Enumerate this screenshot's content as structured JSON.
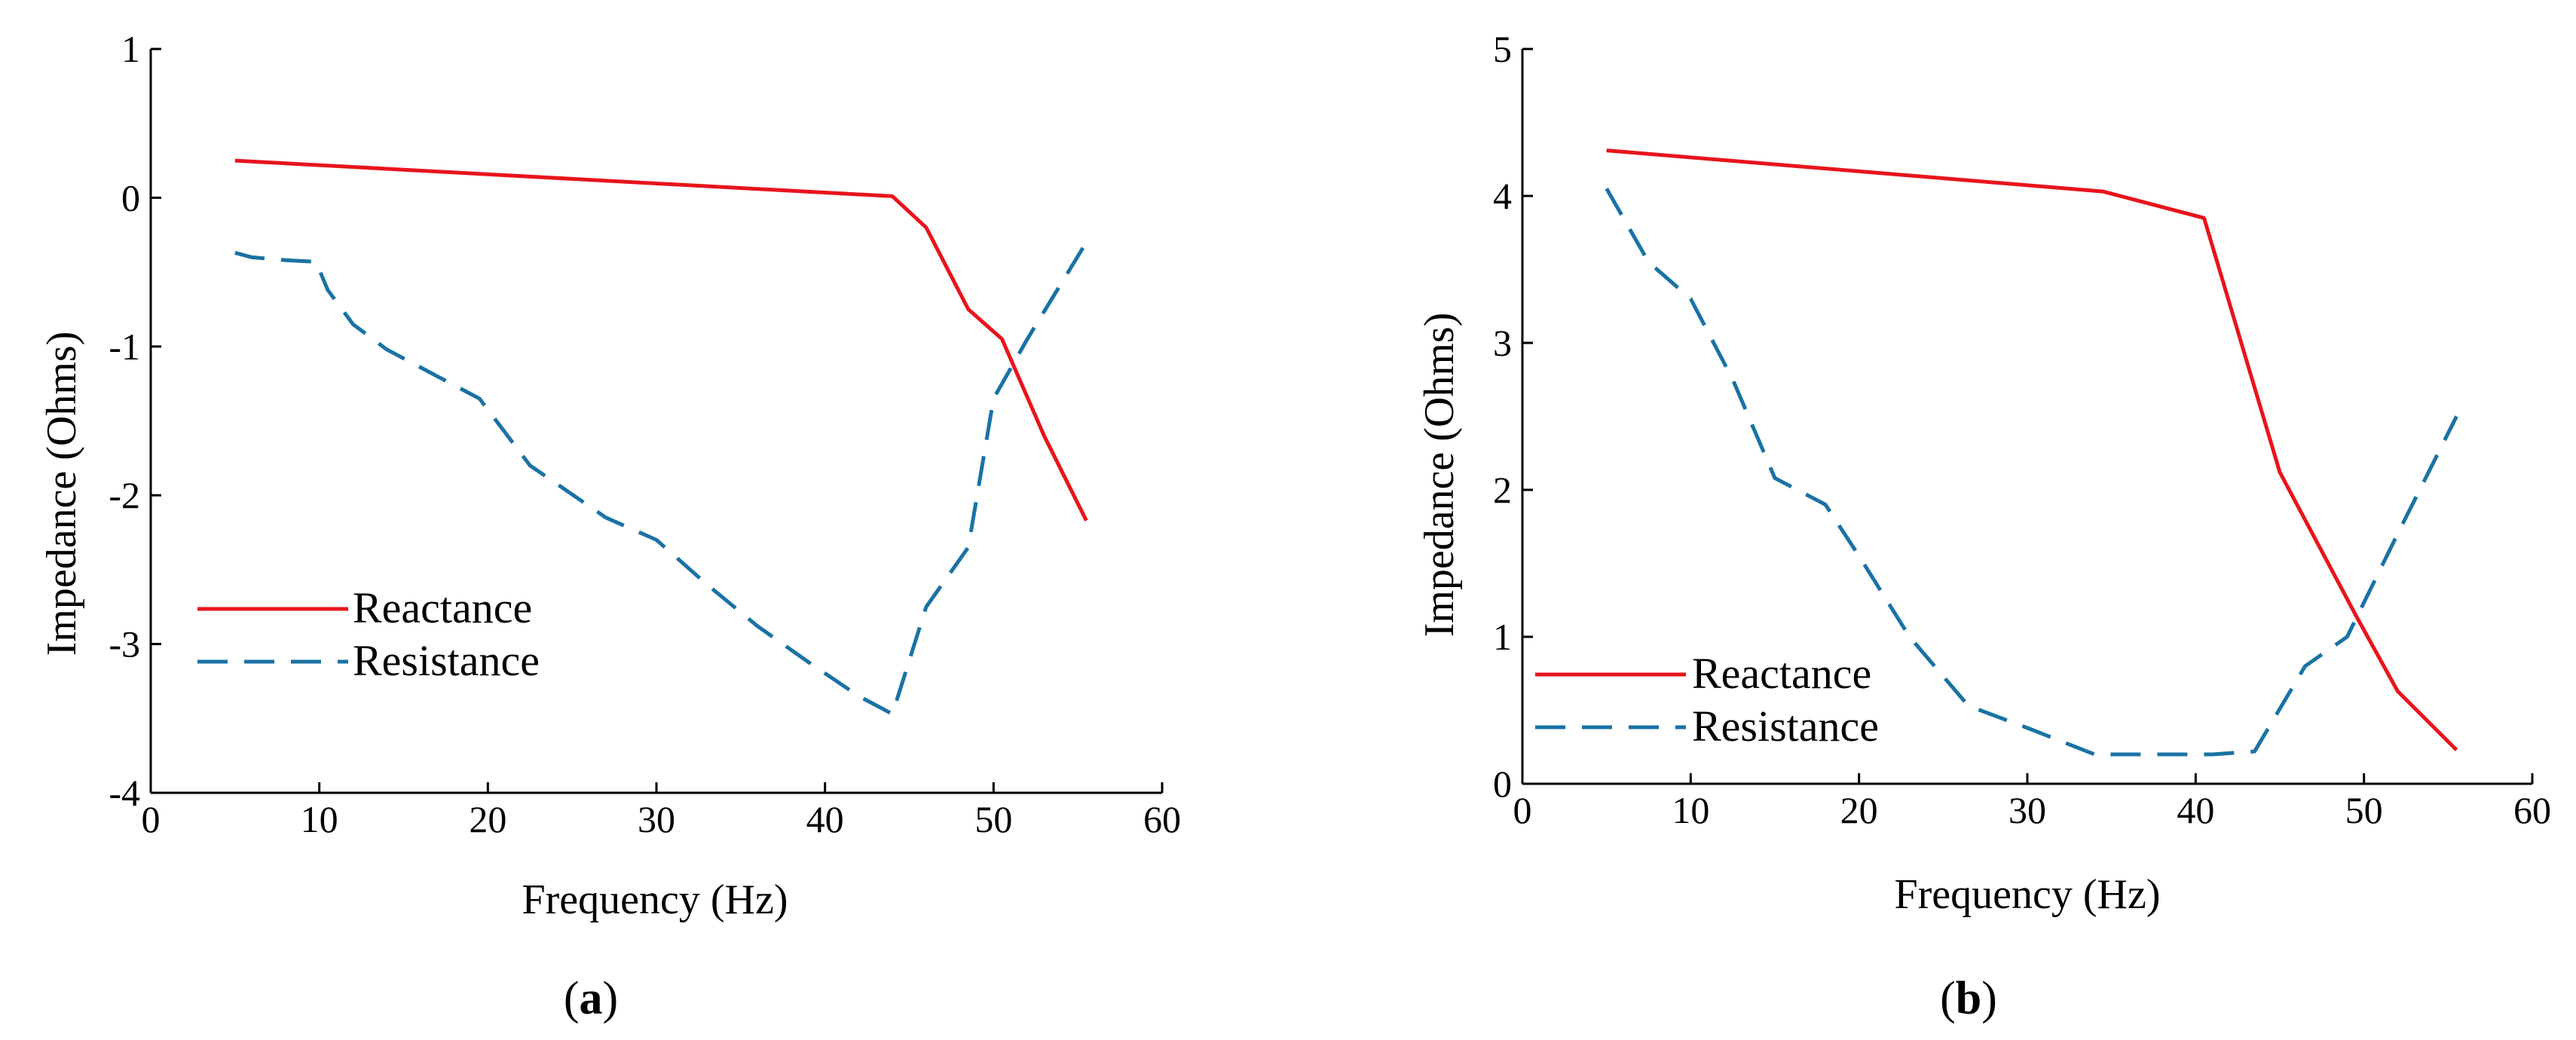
{
  "chart_data": [
    {
      "type": "line",
      "panel_label": {
        "open": "(",
        "letter": "a",
        "close": ")"
      },
      "xlabel": "Frequency (Hz)",
      "ylabel": "Impedance (Ohms)",
      "xlim": [
        0,
        60
      ],
      "ylim": [
        -4,
        1
      ],
      "xticks": [
        0,
        10,
        20,
        30,
        40,
        50,
        60
      ],
      "yticks": [
        -4,
        -3,
        -2,
        -1,
        0,
        1
      ],
      "xtick_labels": [
        "0",
        "10",
        "20",
        "30",
        "40",
        "50",
        "60"
      ],
      "ytick_labels": [
        "-4",
        "-3",
        "-2",
        "-1",
        "0",
        "1"
      ],
      "grid": false,
      "legend_position": "lower-left",
      "series": [
        {
          "name": "Reactance",
          "color": "#e8141c",
          "style": "solid",
          "x": [
            5,
            44,
            46,
            48.5,
            50.5,
            53,
            55.5
          ],
          "y": [
            0.25,
            0.01,
            -0.2,
            -0.75,
            -0.95,
            -1.6,
            -2.17
          ]
        },
        {
          "name": "Resistance",
          "color": "#1a72a4",
          "style": "dashed",
          "x": [
            5,
            6,
            8,
            9.8,
            10.5,
            12,
            14,
            17,
            19.5,
            22.5,
            27,
            30,
            33,
            36,
            39,
            42,
            44,
            46,
            48.5,
            50,
            52,
            55.5
          ],
          "y": [
            -0.37,
            -0.4,
            -0.42,
            -0.43,
            -0.62,
            -0.85,
            -1.02,
            -1.2,
            -1.35,
            -1.8,
            -2.15,
            -2.3,
            -2.6,
            -2.88,
            -3.12,
            -3.35,
            -3.47,
            -2.75,
            -2.35,
            -1.35,
            -0.95,
            -0.3
          ]
        }
      ]
    },
    {
      "type": "line",
      "panel_label": {
        "open": "(",
        "letter": "b",
        "close": ")"
      },
      "xlabel": "Frequency (Hz)",
      "ylabel": "Impedance (Ohms)",
      "xlim": [
        0,
        60
      ],
      "ylim": [
        0,
        5
      ],
      "xticks": [
        0,
        10,
        20,
        30,
        40,
        50,
        60
      ],
      "yticks": [
        0,
        1,
        2,
        3,
        4,
        5
      ],
      "xtick_labels": [
        "0",
        "10",
        "20",
        "30",
        "40",
        "50",
        "60"
      ],
      "ytick_labels": [
        "0",
        "1",
        "2",
        "3",
        "4",
        "5"
      ],
      "grid": false,
      "legend_position": "lower-left",
      "series": [
        {
          "name": "Reactance",
          "color": "#e8141c",
          "style": "solid",
          "x": [
            5,
            34.5,
            40.5,
            45,
            49.5,
            52,
            55.5
          ],
          "y": [
            4.31,
            4.03,
            3.85,
            2.12,
            1.15,
            0.63,
            0.23
          ]
        },
        {
          "name": "Resistance",
          "color": "#1a72a4",
          "style": "dashed",
          "x": [
            5,
            7.5,
            10,
            12.5,
            15,
            18,
            20,
            23,
            26.5,
            30,
            34,
            37,
            41,
            43.5,
            46.5,
            49,
            52,
            55.5
          ],
          "y": [
            4.05,
            3.55,
            3.3,
            2.75,
            2.08,
            1.9,
            1.55,
            1.0,
            0.53,
            0.38,
            0.2,
            0.2,
            0.2,
            0.22,
            0.8,
            1.0,
            1.7,
            2.5
          ]
        }
      ]
    }
  ]
}
